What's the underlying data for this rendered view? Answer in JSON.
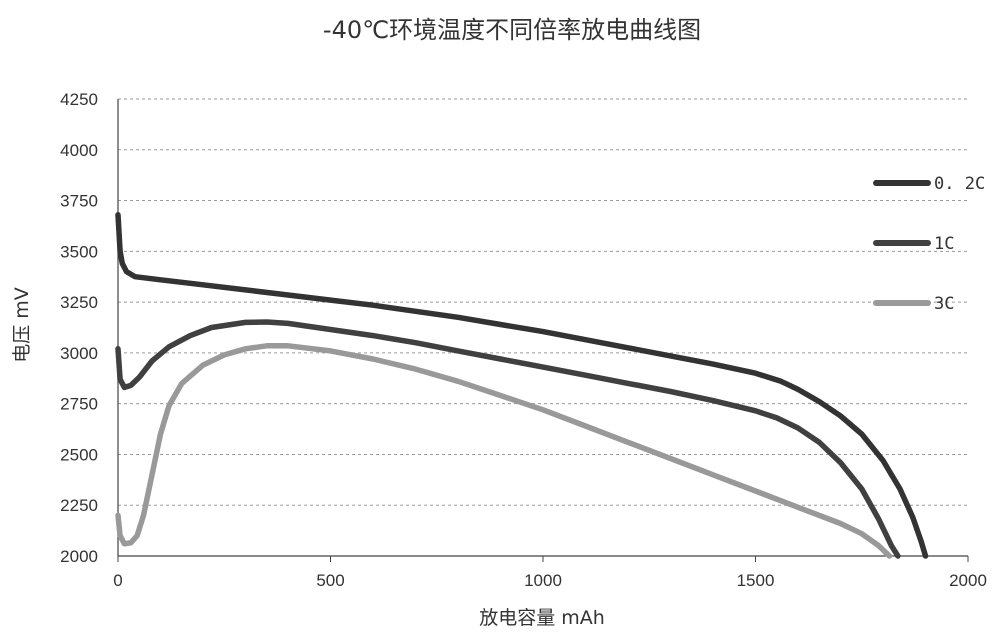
{
  "chart_data": {
    "type": "line",
    "title": "-40℃环境温度不同倍率放电曲线图",
    "xlabel": "放电容量 mAh",
    "ylabel": "电压 mV",
    "xlim": [
      0,
      2000
    ],
    "ylim": [
      2000,
      4250
    ],
    "xticks": [
      "0",
      "500",
      "1000",
      "1500",
      "2000"
    ],
    "yticks": [
      "2000",
      "2250",
      "2500",
      "2750",
      "3000",
      "3250",
      "3500",
      "3750",
      "4000",
      "4250"
    ],
    "grid": "horizontal dashed",
    "legend": "right",
    "series": [
      {
        "name": "0. 2C",
        "color": "#333333",
        "points": [
          [
            0,
            3680
          ],
          [
            5,
            3500
          ],
          [
            10,
            3440
          ],
          [
            20,
            3400
          ],
          [
            40,
            3375
          ],
          [
            100,
            3360
          ],
          [
            200,
            3335
          ],
          [
            300,
            3310
          ],
          [
            400,
            3285
          ],
          [
            500,
            3260
          ],
          [
            600,
            3235
          ],
          [
            700,
            3205
          ],
          [
            800,
            3175
          ],
          [
            900,
            3140
          ],
          [
            1000,
            3105
          ],
          [
            1100,
            3065
          ],
          [
            1200,
            3025
          ],
          [
            1300,
            2985
          ],
          [
            1400,
            2945
          ],
          [
            1500,
            2900
          ],
          [
            1560,
            2860
          ],
          [
            1600,
            2820
          ],
          [
            1650,
            2760
          ],
          [
            1700,
            2690
          ],
          [
            1750,
            2600
          ],
          [
            1800,
            2470
          ],
          [
            1840,
            2330
          ],
          [
            1870,
            2190
          ],
          [
            1890,
            2070
          ],
          [
            1900,
            2000
          ]
        ]
      },
      {
        "name": "1C",
        "color": "#404040",
        "points": [
          [
            0,
            3020
          ],
          [
            5,
            2870
          ],
          [
            15,
            2830
          ],
          [
            30,
            2840
          ],
          [
            50,
            2880
          ],
          [
            80,
            2960
          ],
          [
            120,
            3030
          ],
          [
            170,
            3085
          ],
          [
            220,
            3125
          ],
          [
            300,
            3150
          ],
          [
            350,
            3152
          ],
          [
            400,
            3145
          ],
          [
            500,
            3115
          ],
          [
            600,
            3085
          ],
          [
            700,
            3050
          ],
          [
            800,
            3010
          ],
          [
            900,
            2970
          ],
          [
            1000,
            2930
          ],
          [
            1100,
            2890
          ],
          [
            1200,
            2850
          ],
          [
            1300,
            2810
          ],
          [
            1400,
            2765
          ],
          [
            1500,
            2715
          ],
          [
            1550,
            2680
          ],
          [
            1600,
            2630
          ],
          [
            1650,
            2560
          ],
          [
            1700,
            2460
          ],
          [
            1750,
            2330
          ],
          [
            1790,
            2180
          ],
          [
            1820,
            2050
          ],
          [
            1835,
            2000
          ]
        ]
      },
      {
        "name": "3C",
        "color": "#999999",
        "points": [
          [
            0,
            2200
          ],
          [
            5,
            2100
          ],
          [
            15,
            2060
          ],
          [
            30,
            2065
          ],
          [
            45,
            2100
          ],
          [
            60,
            2200
          ],
          [
            80,
            2400
          ],
          [
            100,
            2600
          ],
          [
            120,
            2740
          ],
          [
            150,
            2850
          ],
          [
            200,
            2940
          ],
          [
            250,
            2990
          ],
          [
            300,
            3020
          ],
          [
            350,
            3035
          ],
          [
            400,
            3035
          ],
          [
            500,
            3010
          ],
          [
            600,
            2970
          ],
          [
            700,
            2920
          ],
          [
            800,
            2860
          ],
          [
            900,
            2790
          ],
          [
            1000,
            2720
          ],
          [
            1100,
            2640
          ],
          [
            1200,
            2560
          ],
          [
            1300,
            2480
          ],
          [
            1400,
            2400
          ],
          [
            1500,
            2320
          ],
          [
            1600,
            2240
          ],
          [
            1700,
            2160
          ],
          [
            1750,
            2110
          ],
          [
            1790,
            2050
          ],
          [
            1815,
            2000
          ]
        ]
      }
    ]
  }
}
